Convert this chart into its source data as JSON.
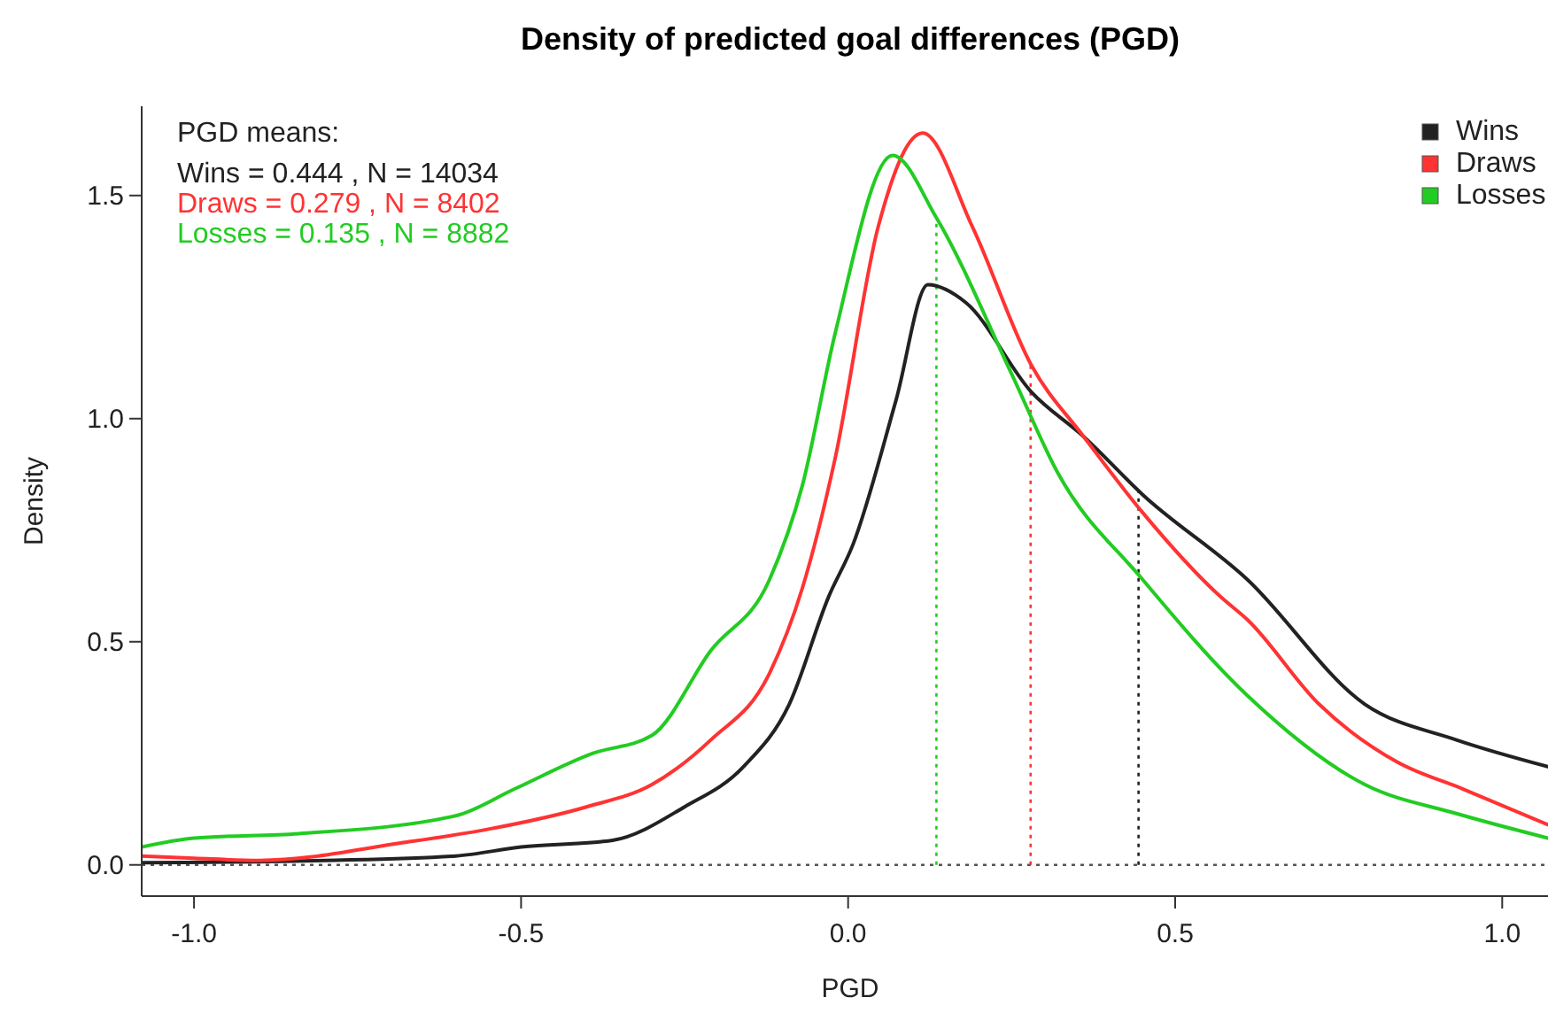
{
  "chart_data": {
    "type": "line",
    "title": "Density of predicted goal differences (PGD)",
    "xlabel": "PGD",
    "ylabel": "Density",
    "xlim": [
      -1.08,
      1.07
    ],
    "xticks": [
      {
        "value": -1,
        "label": "-1.0"
      },
      -0.5,
      {
        "value": 0,
        "label": "0.0"
      },
      0.5,
      {
        "value": 1,
        "label": "1.0"
      }
    ],
    "ylim": [
      -0.07,
      1.7
    ],
    "yticks": [
      {
        "value": 0,
        "label": "0.0"
      },
      0.5,
      {
        "value": 1,
        "label": "1.0"
      },
      1.5
    ],
    "grid": false,
    "legend": "top right",
    "marker": "none",
    "line_style": "solid",
    "series": [
      {
        "name": "Wins",
        "color": "#222222",
        "x": [
          -1.08,
          -0.8,
          -0.6,
          -0.5,
          -0.36,
          -0.25,
          -0.16,
          -0.09,
          -0.03,
          0.008,
          0.073,
          0.122,
          0.18,
          0.28,
          0.36,
          0.45,
          0.61,
          0.79,
          0.93,
          1.07
        ],
        "values": [
          0.005,
          0.01,
          0.02,
          0.04,
          0.055,
          0.13,
          0.22,
          0.36,
          0.6,
          0.72,
          1.04,
          1.3,
          1.26,
          1.06,
          0.96,
          0.83,
          0.64,
          0.36,
          0.28,
          0.22
        ]
      },
      {
        "name": "Draws",
        "color": "#ff3333",
        "x": [
          -1.08,
          -1.0,
          -0.9,
          -0.68,
          -0.55,
          -0.4,
          -0.3,
          -0.21,
          -0.12,
          -0.07,
          -0.02,
          0.046,
          0.114,
          0.19,
          0.28,
          0.36,
          0.45,
          0.57,
          0.61,
          0.72,
          0.84,
          0.94,
          1.07
        ],
        "values": [
          0.02,
          0.015,
          0.01,
          0.05,
          0.08,
          0.13,
          0.18,
          0.28,
          0.43,
          0.62,
          0.91,
          1.43,
          1.64,
          1.43,
          1.12,
          0.96,
          0.79,
          0.6,
          0.55,
          0.36,
          0.23,
          0.17,
          0.09
        ]
      },
      {
        "name": "Losses",
        "color": "#22cc22",
        "x": [
          -1.08,
          -1.0,
          -0.84,
          -0.6,
          -0.51,
          -0.39,
          -0.3,
          -0.21,
          -0.12,
          -0.07,
          -0.02,
          0.068,
          0.135,
          0.25,
          0.32,
          0.45,
          0.61,
          0.79,
          0.93,
          1.07
        ],
        "values": [
          0.04,
          0.06,
          0.07,
          0.11,
          0.17,
          0.25,
          0.29,
          0.48,
          0.64,
          0.85,
          1.19,
          1.59,
          1.45,
          1.1,
          0.88,
          0.64,
          0.38,
          0.18,
          0.115,
          0.06
        ]
      }
    ],
    "ref_lines": [
      {
        "axis": "y",
        "value": 0,
        "color": "#555555",
        "line_style": "dotted"
      },
      {
        "axis": "x",
        "value": 0.444,
        "color": "#222222",
        "line_style": "dotted"
      },
      {
        "axis": "x",
        "value": 0.279,
        "color": "#ff3333",
        "line_style": "dotted"
      },
      {
        "axis": "x",
        "value": 0.135,
        "color": "#22cc22",
        "line_style": "dotted"
      }
    ],
    "annotations": [
      "PGD means:",
      "Wins = 0.444 , N = 14034",
      "Draws = 0.279 , N = 8402",
      "Losses = 0.135 , N = 8882"
    ]
  }
}
